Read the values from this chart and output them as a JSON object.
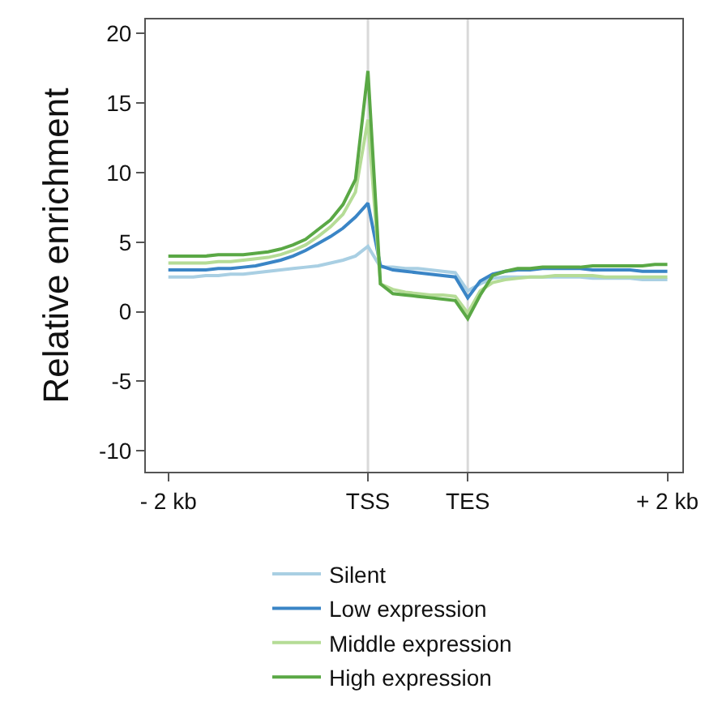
{
  "chart_data": {
    "type": "line",
    "ylabel": "Relative enrichment",
    "categories": [
      "- 2 kb",
      null,
      null,
      null,
      null,
      null,
      null,
      null,
      null,
      null,
      null,
      null,
      null,
      null,
      null,
      null,
      "TSS",
      null,
      null,
      null,
      null,
      null,
      null,
      null,
      "TES",
      null,
      null,
      null,
      null,
      null,
      null,
      null,
      null,
      null,
      null,
      null,
      null,
      null,
      null,
      null,
      "+ 2 kb"
    ],
    "ylim": [
      -11.5,
      21
    ],
    "yticks": [
      -10,
      -5,
      0,
      5,
      10,
      15,
      20
    ],
    "grid": false,
    "legend": "bottom",
    "line_style": "solid",
    "marker": "none",
    "ref_lines": [
      {
        "axis": "x",
        "value": "TSS",
        "color": "#d9d9d9"
      },
      {
        "axis": "x",
        "value": "TES",
        "color": "#d9d9d9"
      }
    ],
    "series": [
      {
        "name": "Silent",
        "color": "#a9cfe3",
        "values": [
          2.5,
          2.5,
          2.5,
          2.6,
          2.6,
          2.7,
          2.7,
          2.8,
          2.9,
          3.0,
          3.1,
          3.2,
          3.3,
          3.5,
          3.7,
          4.0,
          4.7,
          3.2,
          3.2,
          3.1,
          3.1,
          3.0,
          2.9,
          2.8,
          1.5,
          2.0,
          2.4,
          2.5,
          2.5,
          2.5,
          2.5,
          2.5,
          2.5,
          2.5,
          2.4,
          2.4,
          2.4,
          2.4,
          2.3,
          2.3,
          2.3
        ]
      },
      {
        "name": "Low expression",
        "color": "#3a85c6",
        "values": [
          3.0,
          3.0,
          3.0,
          3.0,
          3.1,
          3.1,
          3.2,
          3.3,
          3.5,
          3.7,
          4.0,
          4.4,
          4.9,
          5.4,
          6.0,
          6.8,
          7.8,
          3.3,
          3.0,
          2.9,
          2.8,
          2.7,
          2.6,
          2.5,
          1.0,
          2.2,
          2.7,
          2.9,
          3.0,
          3.0,
          3.1,
          3.1,
          3.1,
          3.1,
          3.0,
          3.0,
          3.0,
          3.0,
          2.9,
          2.9,
          2.9
        ]
      },
      {
        "name": "Middle expression",
        "color": "#b5dc96",
        "values": [
          3.5,
          3.5,
          3.5,
          3.5,
          3.6,
          3.6,
          3.7,
          3.8,
          3.9,
          4.1,
          4.4,
          4.8,
          5.4,
          6.1,
          7.0,
          8.6,
          13.8,
          2.0,
          1.6,
          1.4,
          1.3,
          1.2,
          1.2,
          1.1,
          -0.1,
          1.5,
          2.1,
          2.3,
          2.4,
          2.5,
          2.5,
          2.6,
          2.6,
          2.6,
          2.6,
          2.5,
          2.5,
          2.5,
          2.5,
          2.5,
          2.5
        ]
      },
      {
        "name": "High expression",
        "color": "#5aa845",
        "values": [
          4.0,
          4.0,
          4.0,
          4.0,
          4.1,
          4.1,
          4.1,
          4.2,
          4.3,
          4.5,
          4.8,
          5.2,
          5.9,
          6.6,
          7.7,
          9.5,
          17.3,
          2.0,
          1.3,
          1.2,
          1.1,
          1.0,
          0.9,
          0.8,
          -0.5,
          1.2,
          2.6,
          2.9,
          3.1,
          3.1,
          3.2,
          3.2,
          3.2,
          3.2,
          3.3,
          3.3,
          3.3,
          3.3,
          3.3,
          3.4,
          3.4
        ]
      }
    ]
  }
}
